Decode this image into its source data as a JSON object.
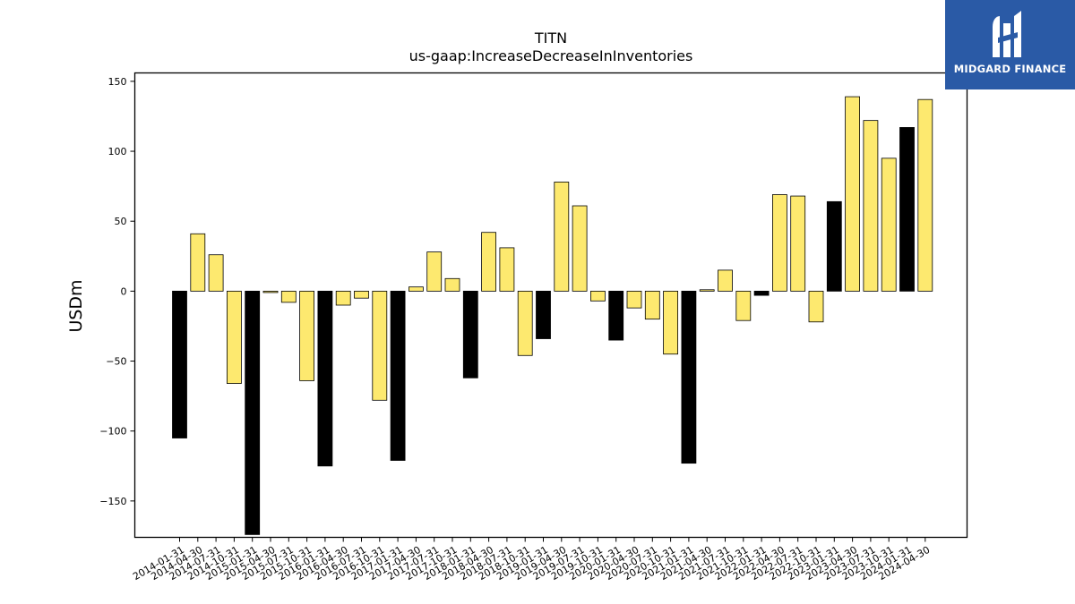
{
  "brand": {
    "name": "MIDGARD FINANCE",
    "color": "#2a5aa6"
  },
  "chart_data": {
    "type": "bar",
    "title": "TITN",
    "subtitle": "us-gaap:IncreaseDecreaseInInventories",
    "ylabel": "USDm",
    "xlabel": "",
    "ylim": [
      -176,
      156
    ],
    "yticks": [
      150,
      100,
      50,
      0,
      -50,
      -100,
      -150
    ],
    "ytick_labels": [
      "150",
      "100",
      "50",
      "0",
      "−50",
      "−100",
      "−150"
    ],
    "colors": {
      "quarter": "#fde96f",
      "fiscal_year_end": "#000000"
    },
    "categories": [
      "2014-01-31",
      "2014-04-30",
      "2014-07-31",
      "2014-10-31",
      "2015-01-31",
      "2015-04-30",
      "2015-07-31",
      "2015-10-31",
      "2016-01-31",
      "2016-04-30",
      "2016-07-31",
      "2016-10-31",
      "2017-01-31",
      "2017-04-30",
      "2017-07-31",
      "2017-10-31",
      "2018-01-31",
      "2018-04-30",
      "2018-07-31",
      "2018-10-31",
      "2019-01-31",
      "2019-04-30",
      "2019-07-31",
      "2019-10-31",
      "2020-01-31",
      "2020-04-30",
      "2020-07-31",
      "2020-10-31",
      "2021-01-31",
      "2021-04-30",
      "2021-07-31",
      "2021-10-31",
      "2022-01-31",
      "2022-04-30",
      "2022-07-31",
      "2022-10-31",
      "2023-01-31",
      "2023-04-30",
      "2023-07-31",
      "2023-10-31",
      "2024-01-31",
      "2024-04-30"
    ],
    "values": [
      -105,
      41,
      26,
      -66,
      -174,
      -1,
      -8,
      -64,
      -125,
      -10,
      -5,
      -78,
      -121,
      3,
      28,
      9,
      -62,
      42,
      31,
      -46,
      -34,
      78,
      61,
      -7,
      -35,
      -12,
      -20,
      -45,
      -123,
      1,
      15,
      -21,
      -3,
      69,
      68,
      -22,
      64,
      139,
      122,
      95,
      117,
      137
    ],
    "bar_color_keys": [
      "fiscal_year_end",
      "quarter",
      "quarter",
      "quarter",
      "fiscal_year_end",
      "quarter",
      "quarter",
      "quarter",
      "fiscal_year_end",
      "quarter",
      "quarter",
      "quarter",
      "fiscal_year_end",
      "quarter",
      "quarter",
      "quarter",
      "fiscal_year_end",
      "quarter",
      "quarter",
      "quarter",
      "fiscal_year_end",
      "quarter",
      "quarter",
      "quarter",
      "fiscal_year_end",
      "quarter",
      "quarter",
      "quarter",
      "fiscal_year_end",
      "quarter",
      "quarter",
      "quarter",
      "fiscal_year_end",
      "quarter",
      "quarter",
      "quarter",
      "fiscal_year_end",
      "quarter",
      "quarter",
      "quarter",
      "fiscal_year_end",
      "quarter"
    ],
    "grid": false,
    "legend": "none"
  }
}
